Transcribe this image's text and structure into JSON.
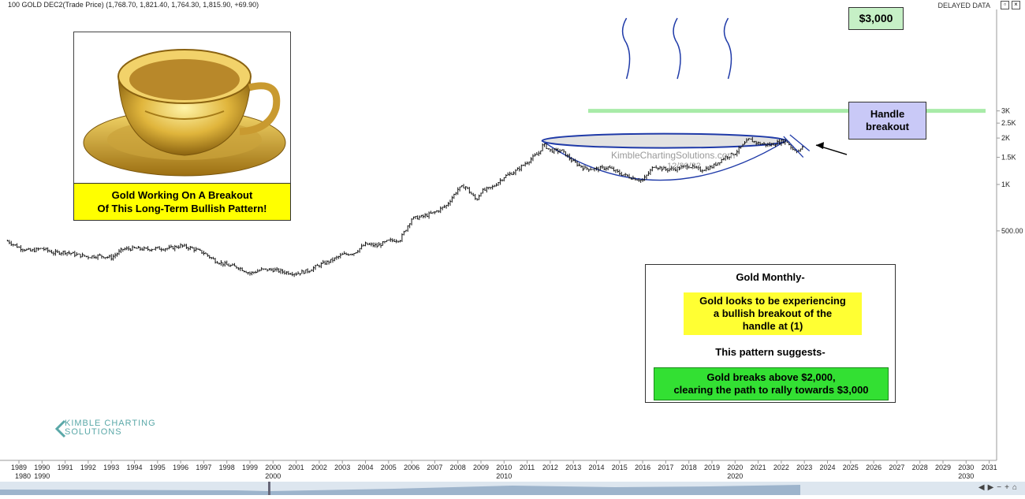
{
  "header": {
    "symbol_line": "100 GOLD DEC2(Trade Price) (1,768.70, 1,821.40, 1,764.30, 1,815.90, +69.90)",
    "delayed": "DELAYED DATA"
  },
  "annotations": {
    "photo_caption_line1": "Gold Working On A Breakout",
    "photo_caption_line2": "Of This Long-Term Bullish Pattern!",
    "target": "$3,000",
    "handle_line1": "Handle",
    "handle_line2": "breakout",
    "info_title": "Gold Monthly-",
    "info_yellow_1": "Gold looks to be experiencing",
    "info_yellow_2": "a bullish breakout of the",
    "info_yellow_3": "handle at (1)",
    "info_mid": "This pattern suggests-",
    "info_green_1": "Gold breaks above $2,000,",
    "info_green_2": "clearing the path to rally towards $3,000",
    "watermark": "KimbleChartingSolutions.com",
    "watermark_date": "12/20/22",
    "logo_line1": "KIMBLE CHARTING",
    "logo_line2": "SOLUTIONS"
  },
  "chart_data": {
    "type": "line",
    "title": "100 GOLD DEC2(Trade Price)",
    "scale": "log",
    "ylim": [
      230,
      3300
    ],
    "y_ticks": [
      {
        "value": 500,
        "label": "500.00"
      },
      {
        "value": 1000,
        "label": "1K"
      },
      {
        "value": 1500,
        "label": "1.5K"
      },
      {
        "value": 2000,
        "label": "2K"
      },
      {
        "value": 2500,
        "label": "2.5K"
      },
      {
        "value": 3000,
        "label": "3K"
      }
    ],
    "x_ticks": [
      "1989",
      "1990",
      "1991",
      "1992",
      "1993",
      "1994",
      "1995",
      "1996",
      "1997",
      "1998",
      "1999",
      "2000",
      "2001",
      "2002",
      "2003",
      "2004",
      "2005",
      "2006",
      "2007",
      "2008",
      "2009",
      "2010",
      "2011",
      "2012",
      "2013",
      "2014",
      "2015",
      "2016",
      "2017",
      "2018",
      "2019",
      "2020",
      "2021",
      "2022",
      "2023",
      "2024",
      "2025",
      "2026",
      "2027",
      "2028",
      "2029",
      "2030",
      "2031"
    ],
    "decade_labels": [
      "1980",
      "1990",
      "2000",
      "2010",
      "2020",
      "2030"
    ],
    "series": [
      {
        "name": "GOLD",
        "x": [
          1988.5,
          1989,
          1989.5,
          1990,
          1990.5,
          1991,
          1991.5,
          1992,
          1992.5,
          1993,
          1993.5,
          1994,
          1994.5,
          1995,
          1995.5,
          1996,
          1996.5,
          1997,
          1997.5,
          1998,
          1998.5,
          1999,
          1999.5,
          2000,
          2000.5,
          2001,
          2001.5,
          2002,
          2002.5,
          2003,
          2003.5,
          2004,
          2004.5,
          2005,
          2005.5,
          2006,
          2006.5,
          2007,
          2007.5,
          2008,
          2008.3,
          2008.8,
          2009,
          2009.5,
          2010,
          2010.5,
          2011,
          2011.5,
          2011.7,
          2012,
          2012.5,
          2013,
          2013.5,
          2014,
          2014.5,
          2015,
          2015.5,
          2016,
          2016.5,
          2017,
          2017.5,
          2018,
          2018.5,
          2019,
          2019.5,
          2020,
          2020.6,
          2021,
          2021.5,
          2022,
          2022.2,
          2022.5,
          2022.8,
          2022.97
        ],
        "values": [
          430,
          390,
          370,
          385,
          360,
          365,
          350,
          340,
          345,
          335,
          380,
          385,
          380,
          385,
          385,
          400,
          385,
          360,
          320,
          300,
          290,
          265,
          280,
          280,
          270,
          265,
          275,
          300,
          320,
          350,
          360,
          410,
          400,
          430,
          440,
          600,
          620,
          660,
          730,
          930,
          980,
          790,
          900,
          960,
          1120,
          1220,
          1400,
          1600,
          1820,
          1660,
          1650,
          1400,
          1270,
          1260,
          1290,
          1180,
          1110,
          1060,
          1320,
          1250,
          1270,
          1320,
          1240,
          1300,
          1480,
          1600,
          1960,
          1850,
          1800,
          1900,
          1930,
          1700,
          1640,
          1816
        ]
      }
    ],
    "target_level": 3000,
    "cup_rim_level": 1920,
    "cup_bottom_level": 1050
  }
}
